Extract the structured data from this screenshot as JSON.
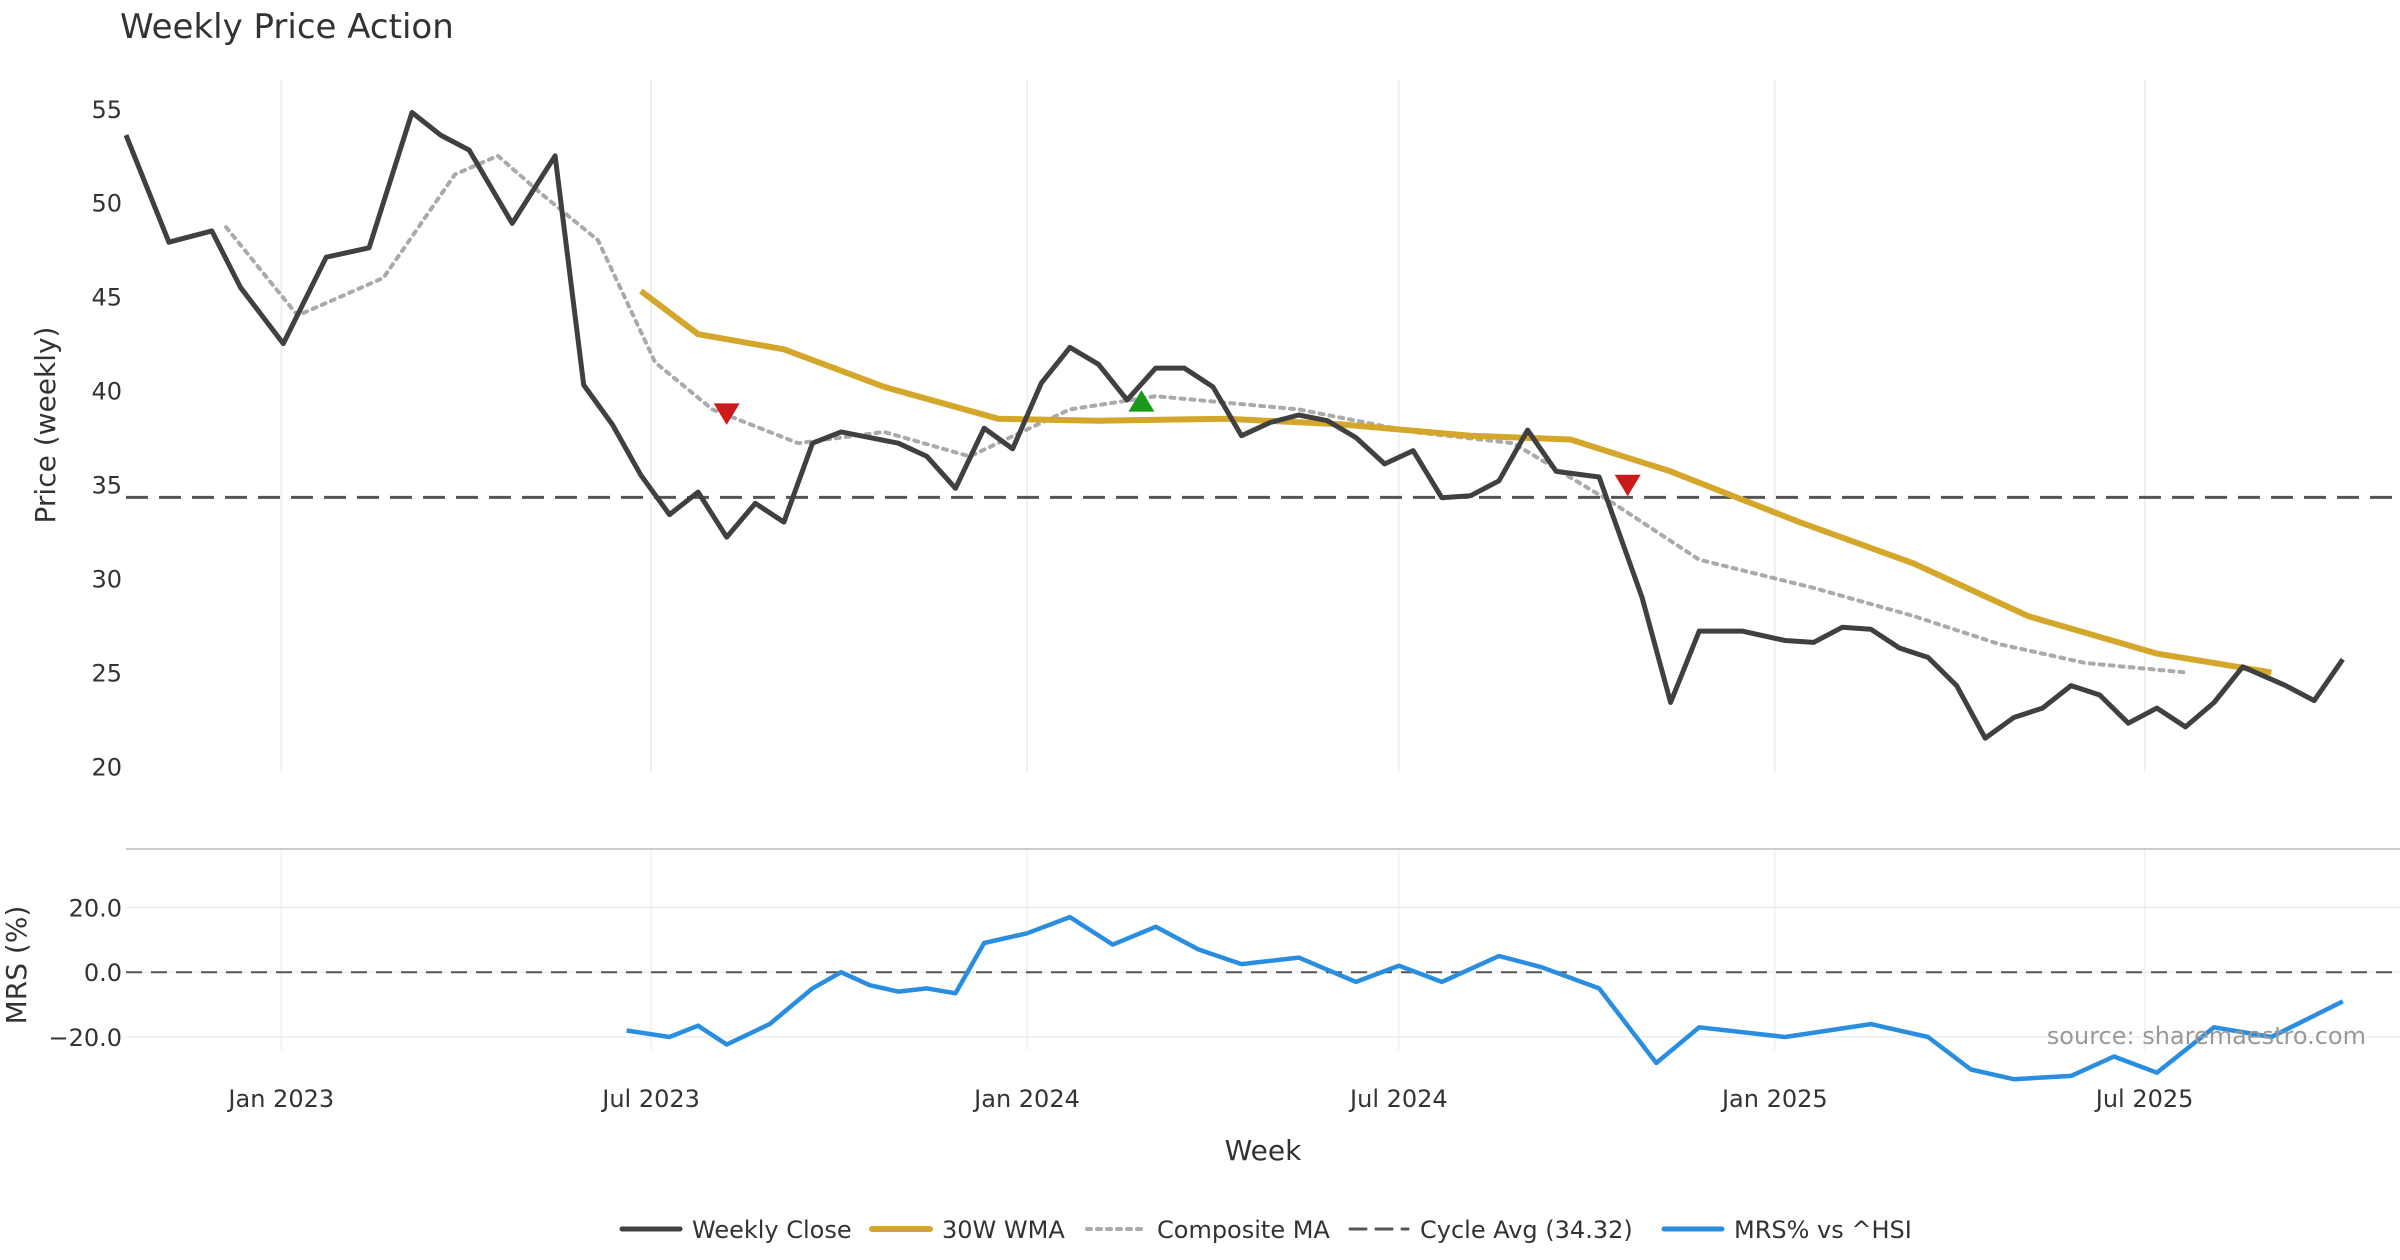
{
  "chart_data": {
    "title": "Weekly Price Action",
    "source": "source: sharemaestro.com",
    "xlabel": "Week",
    "x_ticks": [
      {
        "date": "2023-01-01",
        "label": "Jan 2023"
      },
      {
        "date": "2023-07-01",
        "label": "Jul 2023"
      },
      {
        "date": "2024-01-01",
        "label": "Jan 2024"
      },
      {
        "date": "2024-07-01",
        "label": "Jul 2024"
      },
      {
        "date": "2025-01-01",
        "label": "Jan 2025"
      },
      {
        "date": "2025-07-01",
        "label": "Jul 2025"
      }
    ],
    "x_range": [
      "2022-10-17",
      "2025-11-03"
    ],
    "legend": [
      "Weekly Close",
      "30W WMA",
      "Composite MA",
      "Cycle Avg (34.32)",
      "MRS% vs ^HSI"
    ],
    "colors": {
      "close": "#404040",
      "wma": "#d4a62a",
      "composite": "#aaaaaa",
      "cycle": "#555555",
      "mrs": "#2a8ee0",
      "buy": "#1a9a1a",
      "sell": "#cc1a1a"
    },
    "price_panel": {
      "ylabel": "Price (weekly)",
      "ylim": [
        19.7,
        56
      ],
      "y_ticks": [
        20,
        25,
        30,
        35,
        40,
        45,
        50,
        55
      ],
      "cycle_avg": 34.32,
      "series": [
        {
          "name": "Weekly Close",
          "type": "line",
          "points": [
            [
              "2022-10-17",
              53.6
            ],
            [
              "2022-11-07",
              47.9
            ],
            [
              "2022-11-28",
              48.5
            ],
            [
              "2022-12-12",
              45.5
            ],
            [
              "2023-01-02",
              42.5
            ],
            [
              "2023-01-23",
              47.1
            ],
            [
              "2023-02-13",
              47.6
            ],
            [
              "2023-03-06",
              54.8
            ],
            [
              "2023-03-20",
              53.6
            ],
            [
              "2023-04-03",
              52.8
            ],
            [
              "2023-04-24",
              48.9
            ],
            [
              "2023-05-15",
              52.5
            ],
            [
              "2023-05-29",
              40.3
            ],
            [
              "2023-06-12",
              38.2
            ],
            [
              "2023-06-26",
              35.5
            ],
            [
              "2023-07-10",
              33.4
            ],
            [
              "2023-07-24",
              34.6
            ],
            [
              "2023-08-07",
              32.2
            ],
            [
              "2023-08-21",
              34.0
            ],
            [
              "2023-09-04",
              33.0
            ],
            [
              "2023-09-18",
              37.2
            ],
            [
              "2023-10-02",
              37.8
            ],
            [
              "2023-10-16",
              37.5
            ],
            [
              "2023-10-30",
              37.2
            ],
            [
              "2023-11-13",
              36.5
            ],
            [
              "2023-11-27",
              34.8
            ],
            [
              "2023-12-11",
              38.0
            ],
            [
              "2023-12-25",
              36.9
            ],
            [
              "2024-01-08",
              40.4
            ],
            [
              "2024-01-22",
              42.3
            ],
            [
              "2024-02-05",
              41.4
            ],
            [
              "2024-02-19",
              39.5
            ],
            [
              "2024-03-04",
              41.2
            ],
            [
              "2024-03-18",
              41.2
            ],
            [
              "2024-04-01",
              40.2
            ],
            [
              "2024-04-15",
              37.6
            ],
            [
              "2024-04-29",
              38.3
            ],
            [
              "2024-05-13",
              38.7
            ],
            [
              "2024-05-27",
              38.4
            ],
            [
              "2024-06-10",
              37.5
            ],
            [
              "2024-06-24",
              36.1
            ],
            [
              "2024-07-08",
              36.8
            ],
            [
              "2024-07-22",
              34.3
            ],
            [
              "2024-08-05",
              34.4
            ],
            [
              "2024-08-19",
              35.2
            ],
            [
              "2024-09-02",
              37.9
            ],
            [
              "2024-09-16",
              35.7
            ],
            [
              "2024-10-07",
              35.4
            ],
            [
              "2024-10-28",
              29.0
            ],
            [
              "2024-11-11",
              23.4
            ],
            [
              "2024-11-25",
              27.2
            ],
            [
              "2024-12-16",
              27.2
            ],
            [
              "2025-01-06",
              26.7
            ],
            [
              "2025-01-20",
              26.6
            ],
            [
              "2025-02-03",
              27.4
            ],
            [
              "2025-02-17",
              27.3
            ],
            [
              "2025-03-03",
              26.3
            ],
            [
              "2025-03-17",
              25.8
            ],
            [
              "2025-03-31",
              24.3
            ],
            [
              "2025-04-14",
              21.5
            ],
            [
              "2025-04-28",
              22.6
            ],
            [
              "2025-05-12",
              23.1
            ],
            [
              "2025-05-26",
              24.3
            ],
            [
              "2025-06-09",
              23.8
            ],
            [
              "2025-06-23",
              22.3
            ],
            [
              "2025-07-07",
              23.1
            ],
            [
              "2025-07-21",
              22.1
            ],
            [
              "2025-08-04",
              23.4
            ],
            [
              "2025-08-18",
              25.3
            ],
            [
              "2025-09-08",
              24.3
            ],
            [
              "2025-09-22",
              23.5
            ],
            [
              "2025-10-06",
              25.7
            ]
          ]
        },
        {
          "name": "30W WMA",
          "type": "line",
          "points": [
            [
              "2023-06-26",
              45.3
            ],
            [
              "2023-07-24",
              43.0
            ],
            [
              "2023-09-04",
              42.2
            ],
            [
              "2023-10-23",
              40.2
            ],
            [
              "2023-12-18",
              38.5
            ],
            [
              "2024-02-05",
              38.4
            ],
            [
              "2024-04-08",
              38.5
            ],
            [
              "2024-06-03",
              38.2
            ],
            [
              "2024-08-05",
              37.6
            ],
            [
              "2024-09-23",
              37.4
            ],
            [
              "2024-11-11",
              35.7
            ],
            [
              "2025-01-13",
              33.0
            ],
            [
              "2025-03-10",
              30.8
            ],
            [
              "2025-05-05",
              28.0
            ],
            [
              "2025-07-07",
              26.0
            ],
            [
              "2025-09-01",
              25.0
            ]
          ]
        },
        {
          "name": "Composite MA",
          "type": "line",
          "points": [
            [
              "2022-12-05",
              48.7
            ],
            [
              "2023-01-09",
              44.0
            ],
            [
              "2023-02-20",
              46.0
            ],
            [
              "2023-03-27",
              51.5
            ],
            [
              "2023-04-17",
              52.5
            ],
            [
              "2023-05-08",
              50.5
            ],
            [
              "2023-06-05",
              48.0
            ],
            [
              "2023-07-03",
              41.5
            ],
            [
              "2023-07-31",
              39.0
            ],
            [
              "2023-09-11",
              37.2
            ],
            [
              "2023-10-23",
              37.8
            ],
            [
              "2023-12-04",
              36.5
            ],
            [
              "2024-01-22",
              39.0
            ],
            [
              "2024-03-04",
              39.7
            ],
            [
              "2024-05-13",
              39.0
            ],
            [
              "2024-07-08",
              37.8
            ],
            [
              "2024-08-26",
              37.2
            ],
            [
              "2024-10-14",
              34.0
            ],
            [
              "2024-11-25",
              31.0
            ],
            [
              "2025-01-20",
              29.5
            ],
            [
              "2025-03-10",
              28.0
            ],
            [
              "2025-04-21",
              26.5
            ],
            [
              "2025-06-02",
              25.5
            ],
            [
              "2025-07-21",
              25.0
            ]
          ]
        }
      ],
      "markers": [
        {
          "type": "sell",
          "date": "2023-08-07",
          "value": 38.8
        },
        {
          "type": "buy",
          "date": "2024-02-26",
          "value": 39.4
        },
        {
          "type": "sell",
          "date": "2024-10-21",
          "value": 35.0
        }
      ]
    },
    "mrs_panel": {
      "ylabel": "MRS (%)",
      "ylim": [
        -24,
        38
      ],
      "y_ticks": [
        {
          "v": 20,
          "label": "20.0"
        },
        {
          "v": 0,
          "label": "0.0"
        },
        {
          "v": -20,
          "label": "−20.0"
        }
      ],
      "series": [
        {
          "name": "MRS% vs ^HSI",
          "type": "line",
          "points": [
            [
              "2023-06-19",
              -18.0
            ],
            [
              "2023-07-10",
              -20.0
            ],
            [
              "2023-07-24",
              -16.5
            ],
            [
              "2023-08-07",
              -22.3
            ],
            [
              "2023-08-28",
              -16.0
            ],
            [
              "2023-09-18",
              -5.0
            ],
            [
              "2023-10-02",
              0.0
            ],
            [
              "2023-10-16",
              -4.0
            ],
            [
              "2023-10-30",
              -6.0
            ],
            [
              "2023-11-13",
              -5.0
            ],
            [
              "2023-11-27",
              -6.5
            ],
            [
              "2023-12-11",
              9.0
            ],
            [
              "2024-01-01",
              12.0
            ],
            [
              "2024-01-22",
              17.0
            ],
            [
              "2024-02-12",
              8.5
            ],
            [
              "2024-03-04",
              14.0
            ],
            [
              "2024-03-25",
              7.0
            ],
            [
              "2024-04-15",
              2.5
            ],
            [
              "2024-05-13",
              4.5
            ],
            [
              "2024-06-10",
              -3.0
            ],
            [
              "2024-07-01",
              2.0
            ],
            [
              "2024-07-22",
              -3.0
            ],
            [
              "2024-08-19",
              5.0
            ],
            [
              "2024-09-09",
              1.5
            ],
            [
              "2024-10-07",
              -5.0
            ],
            [
              "2024-11-04",
              -28.0
            ],
            [
              "2024-11-25",
              -17.0
            ],
            [
              "2025-01-06",
              -20.0
            ],
            [
              "2025-02-17",
              -16.0
            ],
            [
              "2025-03-17",
              -20.0
            ],
            [
              "2025-04-07",
              -30.0
            ],
            [
              "2025-04-28",
              -33.0
            ],
            [
              "2025-05-26",
              -32.0
            ],
            [
              "2025-06-16",
              -26.0
            ],
            [
              "2025-07-07",
              -31.0
            ],
            [
              "2025-08-04",
              -17.0
            ],
            [
              "2025-09-01",
              -20.0
            ],
            [
              "2025-10-06",
              -9.0
            ]
          ]
        }
      ]
    }
  },
  "ui": {
    "sell_icon": "triangle-down-icon",
    "buy_icon": "triangle-up-icon"
  }
}
